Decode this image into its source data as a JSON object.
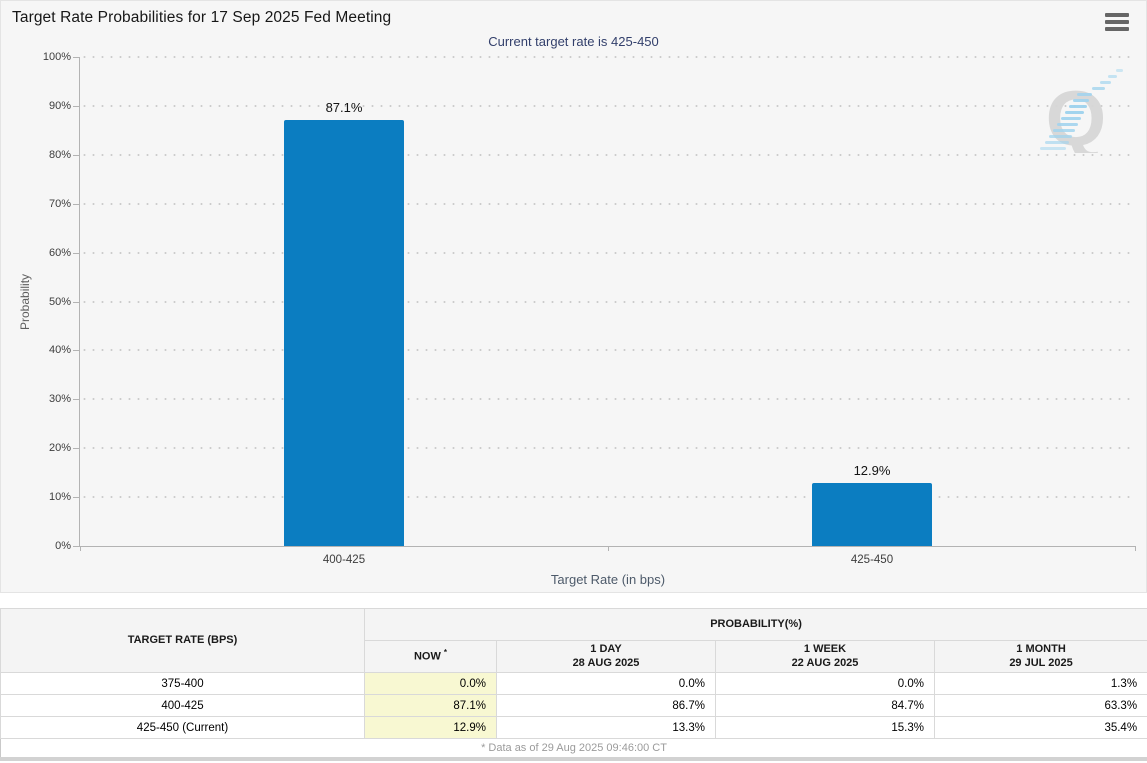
{
  "header": {
    "title": "Target Rate Probabilities for 17 Sep 2025 Fed Meeting"
  },
  "chart_data": {
    "type": "bar",
    "title": "Target Rate Probabilities for 17 Sep 2025 Fed Meeting",
    "subtitle": "Current target rate is 425-450",
    "categories": [
      "400-425",
      "425-450"
    ],
    "values": [
      87.1,
      12.9
    ],
    "value_labels": [
      "87.1%",
      "12.9%"
    ],
    "xlabel": "Target Rate (in bps)",
    "ylabel": "Probability",
    "ylim": [
      0,
      100
    ],
    "y_ticks": [
      "100%",
      "90%",
      "80%",
      "70%",
      "60%",
      "50%",
      "40%",
      "30%",
      "20%",
      "10%",
      "0%"
    ],
    "grid": true,
    "legend": "none",
    "bar_color": "#0b7dc1"
  },
  "watermark": {
    "letter": "Q"
  },
  "table": {
    "headers": {
      "target_rate": "TARGET RATE (BPS)",
      "probability": "PROBABILITY(%)",
      "now": "NOW",
      "now_marker": "*",
      "day_line1": "1 DAY",
      "day_line2": "28 AUG 2025",
      "week_line1": "1 WEEK",
      "week_line2": "22 AUG 2025",
      "month_line1": "1 MONTH",
      "month_line2": "29 JUL 2025"
    },
    "rows": [
      {
        "rate": "375-400",
        "now": "0.0%",
        "day": "0.0%",
        "week": "0.0%",
        "month": "1.3%"
      },
      {
        "rate": "400-425",
        "now": "87.1%",
        "day": "86.7%",
        "week": "84.7%",
        "month": "63.3%"
      },
      {
        "rate": "425-450 (Current)",
        "now": "12.9%",
        "day": "13.3%",
        "week": "15.3%",
        "month": "35.4%"
      }
    ],
    "footnote": "* Data as of 29 Aug 2025 09:46:00 CT"
  }
}
